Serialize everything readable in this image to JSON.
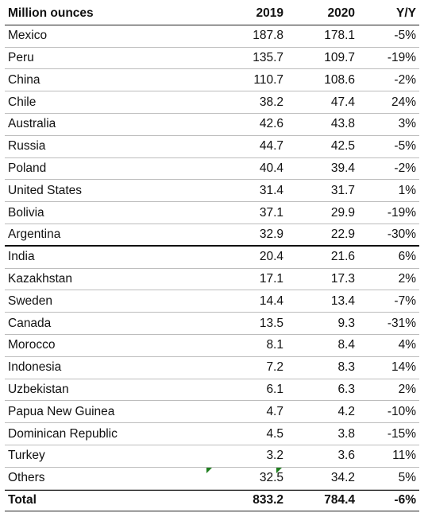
{
  "chart_data": {
    "type": "table",
    "columns": [
      "Million ounces",
      "2019",
      "2020",
      "Y/Y"
    ],
    "rows": [
      [
        "Mexico",
        "187.8",
        "178.1",
        "-5%"
      ],
      [
        "Peru",
        "135.7",
        "109.7",
        "-19%"
      ],
      [
        "China",
        "110.7",
        "108.6",
        "-2%"
      ],
      [
        "Chile",
        "38.2",
        "47.4",
        "24%"
      ],
      [
        "Australia",
        "42.6",
        "43.8",
        "3%"
      ],
      [
        "Russia",
        "44.7",
        "42.5",
        "-5%"
      ],
      [
        "Poland",
        "40.4",
        "39.4",
        "-2%"
      ],
      [
        "United States",
        "31.4",
        "31.7",
        "1%"
      ],
      [
        "Bolivia",
        "37.1",
        "29.9",
        "-19%"
      ],
      [
        "Argentina",
        "32.9",
        "22.9",
        "-30%"
      ],
      [
        "India",
        "20.4",
        "21.6",
        "6%"
      ],
      [
        "Kazakhstan",
        "17.1",
        "17.3",
        "2%"
      ],
      [
        "Sweden",
        "14.4",
        "13.4",
        "-7%"
      ],
      [
        "Canada",
        "13.5",
        "9.3",
        "-31%"
      ],
      [
        "Morocco",
        "8.1",
        "8.4",
        "4%"
      ],
      [
        "Indonesia",
        "7.2",
        "8.3",
        "14%"
      ],
      [
        "Uzbekistan",
        "6.1",
        "6.3",
        "2%"
      ],
      [
        "Papua New Guinea",
        "4.7",
        "4.2",
        "-10%"
      ],
      [
        "Dominican Republic",
        "4.5",
        "3.8",
        "-15%"
      ],
      [
        "Turkey",
        "3.2",
        "3.6",
        "11%"
      ],
      [
        "Others",
        "32.5",
        "34.2",
        "5%"
      ]
    ],
    "total": [
      "Total",
      "833.2",
      "784.4",
      "-6%"
    ],
    "separator_after_row": 9
  },
  "colors": {
    "text": "#111111",
    "grid": "#bdbdbd",
    "marker": "#1e7e1e"
  }
}
